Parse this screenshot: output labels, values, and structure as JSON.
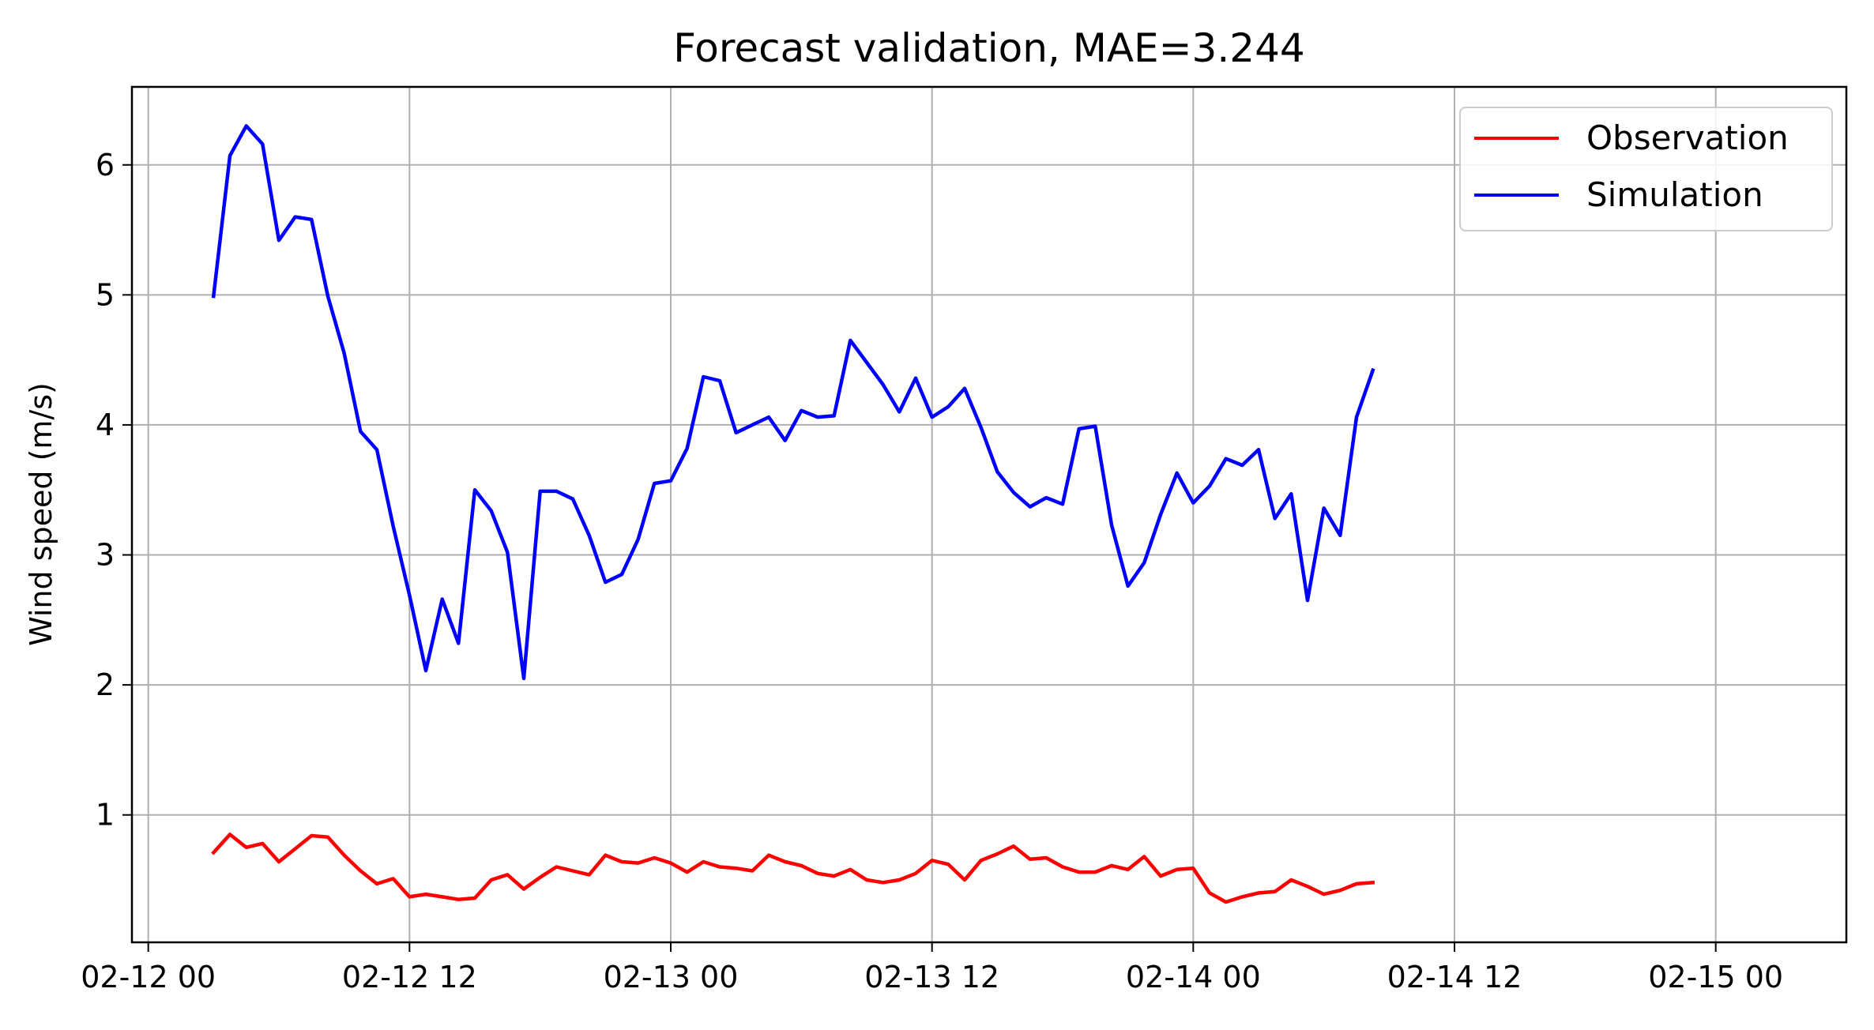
{
  "chart_data": {
    "type": "line",
    "title": "Forecast validation, MAE=3.244",
    "xlabel": "",
    "ylabel": "Wind speed (m/s)",
    "x_type": "datetime",
    "x_start": "2023-02-12 03:00",
    "x_step_minutes": 45,
    "xlim": [
      "2023-02-11 23:15",
      "2023-02-15 06:00"
    ],
    "ylim": [
      0.02,
      6.6
    ],
    "x_ticks": [
      {
        "at": "2023-02-12 00:00",
        "label": "02-12 00"
      },
      {
        "at": "2023-02-12 12:00",
        "label": "02-12 12"
      },
      {
        "at": "2023-02-13 00:00",
        "label": "02-13 00"
      },
      {
        "at": "2023-02-13 12:00",
        "label": "02-13 12"
      },
      {
        "at": "2023-02-14 00:00",
        "label": "02-14 00"
      },
      {
        "at": "2023-02-14 12:00",
        "label": "02-14 12"
      },
      {
        "at": "2023-02-15 00:00",
        "label": "02-15 00"
      }
    ],
    "y_ticks": [
      1,
      2,
      3,
      4,
      5,
      6
    ],
    "grid": true,
    "legend_position": "top-right",
    "series": [
      {
        "name": "Observation",
        "color": "#ff0000",
        "values": [
          0.71,
          0.85,
          0.75,
          0.78,
          0.64,
          0.74,
          0.84,
          0.83,
          0.69,
          0.57,
          0.47,
          0.51,
          0.37,
          0.39,
          0.37,
          0.35,
          0.36,
          0.5,
          0.54,
          0.43,
          0.52,
          0.6,
          0.57,
          0.54,
          0.69,
          0.64,
          0.63,
          0.67,
          0.63,
          0.56,
          0.64,
          0.6,
          0.59,
          0.57,
          0.69,
          0.64,
          0.61,
          0.55,
          0.53,
          0.58,
          0.5,
          0.48,
          0.5,
          0.55,
          0.65,
          0.62,
          0.5,
          0.65,
          0.7,
          0.76,
          0.66,
          0.67,
          0.6,
          0.56,
          0.56,
          0.61,
          0.58,
          0.68,
          0.53,
          0.58,
          0.59,
          0.4,
          0.33,
          0.37,
          0.4,
          0.41,
          0.5,
          0.45,
          0.39,
          0.42,
          0.47,
          0.48
        ]
      },
      {
        "name": "Simulation",
        "color": "#0000ff",
        "values": [
          4.99,
          6.07,
          6.3,
          6.16,
          5.42,
          5.6,
          5.58,
          4.99,
          4.55,
          3.95,
          3.81,
          3.22,
          2.69,
          2.11,
          2.66,
          2.32,
          3.5,
          3.34,
          3.02,
          2.05,
          3.49,
          3.49,
          3.43,
          3.15,
          2.79,
          2.85,
          3.12,
          3.55,
          3.57,
          3.82,
          4.37,
          4.34,
          3.94,
          4.0,
          4.06,
          3.88,
          4.11,
          4.06,
          4.07,
          4.65,
          4.48,
          4.31,
          4.1,
          4.36,
          4.06,
          4.14,
          4.28,
          3.98,
          3.64,
          3.48,
          3.37,
          3.44,
          3.39,
          3.97,
          3.99,
          3.23,
          2.76,
          2.94,
          3.31,
          3.63,
          3.4,
          3.53,
          3.74,
          3.69,
          3.81,
          3.28,
          3.47,
          2.65,
          3.36,
          3.15,
          4.06,
          4.42
        ]
      }
    ]
  }
}
